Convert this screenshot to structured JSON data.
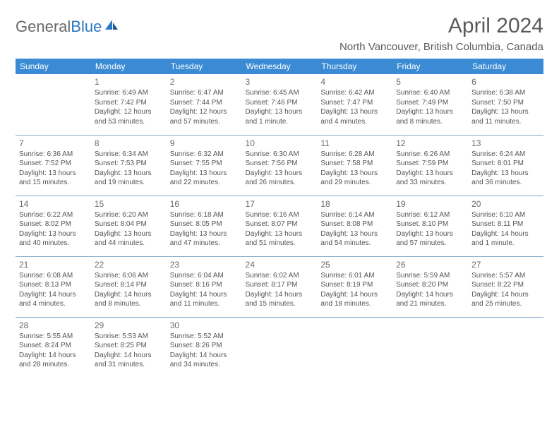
{
  "brand": {
    "part1": "General",
    "part2": "Blue"
  },
  "title": "April 2024",
  "location": "North Vancouver, British Columbia, Canada",
  "colors": {
    "header_bg": "#3b8bd4",
    "header_text": "#ffffff",
    "border": "#8aa9c8",
    "body_text": "#555555",
    "title_text": "#5a5a5a",
    "brand_blue": "#2b78c2"
  },
  "day_headers": [
    "Sunday",
    "Monday",
    "Tuesday",
    "Wednesday",
    "Thursday",
    "Friday",
    "Saturday"
  ],
  "weeks": [
    [
      {
        "day": "",
        "sunrise": "",
        "sunset": "",
        "daylight": ""
      },
      {
        "day": "1",
        "sunrise": "Sunrise: 6:49 AM",
        "sunset": "Sunset: 7:42 PM",
        "daylight": "Daylight: 12 hours and 53 minutes."
      },
      {
        "day": "2",
        "sunrise": "Sunrise: 6:47 AM",
        "sunset": "Sunset: 7:44 PM",
        "daylight": "Daylight: 12 hours and 57 minutes."
      },
      {
        "day": "3",
        "sunrise": "Sunrise: 6:45 AM",
        "sunset": "Sunset: 7:46 PM",
        "daylight": "Daylight: 13 hours and 1 minute."
      },
      {
        "day": "4",
        "sunrise": "Sunrise: 6:42 AM",
        "sunset": "Sunset: 7:47 PM",
        "daylight": "Daylight: 13 hours and 4 minutes."
      },
      {
        "day": "5",
        "sunrise": "Sunrise: 6:40 AM",
        "sunset": "Sunset: 7:49 PM",
        "daylight": "Daylight: 13 hours and 8 minutes."
      },
      {
        "day": "6",
        "sunrise": "Sunrise: 6:38 AM",
        "sunset": "Sunset: 7:50 PM",
        "daylight": "Daylight: 13 hours and 11 minutes."
      }
    ],
    [
      {
        "day": "7",
        "sunrise": "Sunrise: 6:36 AM",
        "sunset": "Sunset: 7:52 PM",
        "daylight": "Daylight: 13 hours and 15 minutes."
      },
      {
        "day": "8",
        "sunrise": "Sunrise: 6:34 AM",
        "sunset": "Sunset: 7:53 PM",
        "daylight": "Daylight: 13 hours and 19 minutes."
      },
      {
        "day": "9",
        "sunrise": "Sunrise: 6:32 AM",
        "sunset": "Sunset: 7:55 PM",
        "daylight": "Daylight: 13 hours and 22 minutes."
      },
      {
        "day": "10",
        "sunrise": "Sunrise: 6:30 AM",
        "sunset": "Sunset: 7:56 PM",
        "daylight": "Daylight: 13 hours and 26 minutes."
      },
      {
        "day": "11",
        "sunrise": "Sunrise: 6:28 AM",
        "sunset": "Sunset: 7:58 PM",
        "daylight": "Daylight: 13 hours and 29 minutes."
      },
      {
        "day": "12",
        "sunrise": "Sunrise: 6:26 AM",
        "sunset": "Sunset: 7:59 PM",
        "daylight": "Daylight: 13 hours and 33 minutes."
      },
      {
        "day": "13",
        "sunrise": "Sunrise: 6:24 AM",
        "sunset": "Sunset: 8:01 PM",
        "daylight": "Daylight: 13 hours and 36 minutes."
      }
    ],
    [
      {
        "day": "14",
        "sunrise": "Sunrise: 6:22 AM",
        "sunset": "Sunset: 8:02 PM",
        "daylight": "Daylight: 13 hours and 40 minutes."
      },
      {
        "day": "15",
        "sunrise": "Sunrise: 6:20 AM",
        "sunset": "Sunset: 8:04 PM",
        "daylight": "Daylight: 13 hours and 44 minutes."
      },
      {
        "day": "16",
        "sunrise": "Sunrise: 6:18 AM",
        "sunset": "Sunset: 8:05 PM",
        "daylight": "Daylight: 13 hours and 47 minutes."
      },
      {
        "day": "17",
        "sunrise": "Sunrise: 6:16 AM",
        "sunset": "Sunset: 8:07 PM",
        "daylight": "Daylight: 13 hours and 51 minutes."
      },
      {
        "day": "18",
        "sunrise": "Sunrise: 6:14 AM",
        "sunset": "Sunset: 8:08 PM",
        "daylight": "Daylight: 13 hours and 54 minutes."
      },
      {
        "day": "19",
        "sunrise": "Sunrise: 6:12 AM",
        "sunset": "Sunset: 8:10 PM",
        "daylight": "Daylight: 13 hours and 57 minutes."
      },
      {
        "day": "20",
        "sunrise": "Sunrise: 6:10 AM",
        "sunset": "Sunset: 8:11 PM",
        "daylight": "Daylight: 14 hours and 1 minute."
      }
    ],
    [
      {
        "day": "21",
        "sunrise": "Sunrise: 6:08 AM",
        "sunset": "Sunset: 8:13 PM",
        "daylight": "Daylight: 14 hours and 4 minutes."
      },
      {
        "day": "22",
        "sunrise": "Sunrise: 6:06 AM",
        "sunset": "Sunset: 8:14 PM",
        "daylight": "Daylight: 14 hours and 8 minutes."
      },
      {
        "day": "23",
        "sunrise": "Sunrise: 6:04 AM",
        "sunset": "Sunset: 8:16 PM",
        "daylight": "Daylight: 14 hours and 11 minutes."
      },
      {
        "day": "24",
        "sunrise": "Sunrise: 6:02 AM",
        "sunset": "Sunset: 8:17 PM",
        "daylight": "Daylight: 14 hours and 15 minutes."
      },
      {
        "day": "25",
        "sunrise": "Sunrise: 6:01 AM",
        "sunset": "Sunset: 8:19 PM",
        "daylight": "Daylight: 14 hours and 18 minutes."
      },
      {
        "day": "26",
        "sunrise": "Sunrise: 5:59 AM",
        "sunset": "Sunset: 8:20 PM",
        "daylight": "Daylight: 14 hours and 21 minutes."
      },
      {
        "day": "27",
        "sunrise": "Sunrise: 5:57 AM",
        "sunset": "Sunset: 8:22 PM",
        "daylight": "Daylight: 14 hours and 25 minutes."
      }
    ],
    [
      {
        "day": "28",
        "sunrise": "Sunrise: 5:55 AM",
        "sunset": "Sunset: 8:24 PM",
        "daylight": "Daylight: 14 hours and 28 minutes."
      },
      {
        "day": "29",
        "sunrise": "Sunrise: 5:53 AM",
        "sunset": "Sunset: 8:25 PM",
        "daylight": "Daylight: 14 hours and 31 minutes."
      },
      {
        "day": "30",
        "sunrise": "Sunrise: 5:52 AM",
        "sunset": "Sunset: 8:26 PM",
        "daylight": "Daylight: 14 hours and 34 minutes."
      },
      {
        "day": "",
        "sunrise": "",
        "sunset": "",
        "daylight": ""
      },
      {
        "day": "",
        "sunrise": "",
        "sunset": "",
        "daylight": ""
      },
      {
        "day": "",
        "sunrise": "",
        "sunset": "",
        "daylight": ""
      },
      {
        "day": "",
        "sunrise": "",
        "sunset": "",
        "daylight": ""
      }
    ]
  ]
}
